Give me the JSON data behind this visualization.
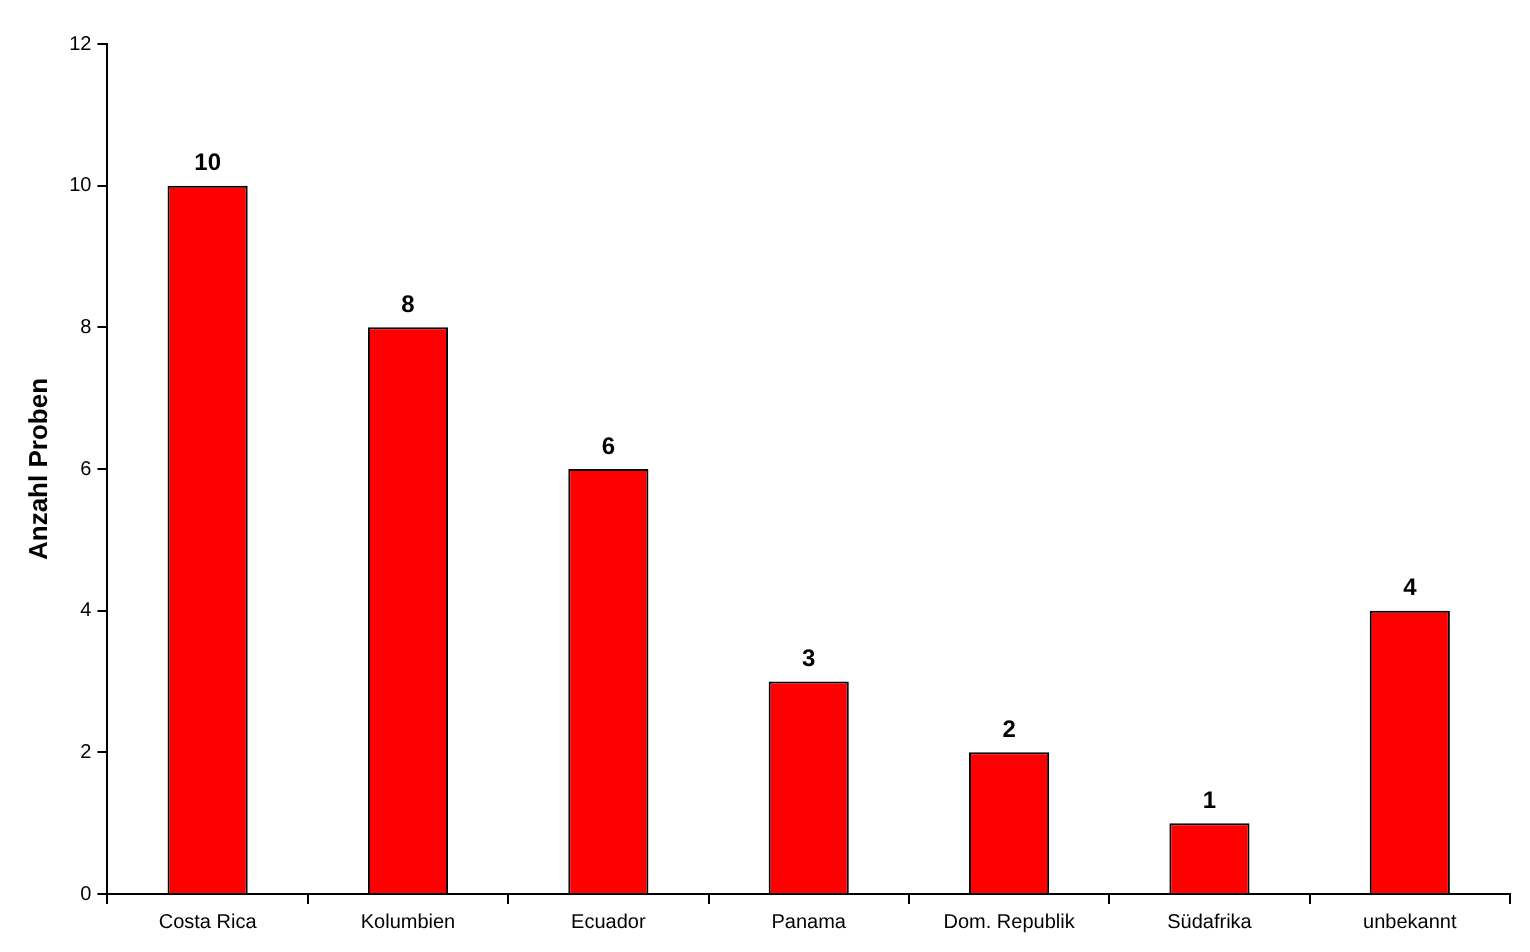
{
  "chart_data": {
    "type": "bar",
    "ylabel": "Anzahl Proben",
    "categories": [
      "Costa Rica",
      "Kolumbien",
      "Ecuador",
      "Panama",
      "Dom. Republik",
      "Südafrika",
      "unbekannt"
    ],
    "values": [
      10,
      8,
      6,
      3,
      2,
      1,
      4
    ],
    "color": "#ff0000",
    "ylim": [
      0,
      12
    ],
    "yticks": [
      0,
      2,
      4,
      6,
      8,
      10,
      12
    ],
    "grid": false,
    "legend": false,
    "data_labels": true
  }
}
